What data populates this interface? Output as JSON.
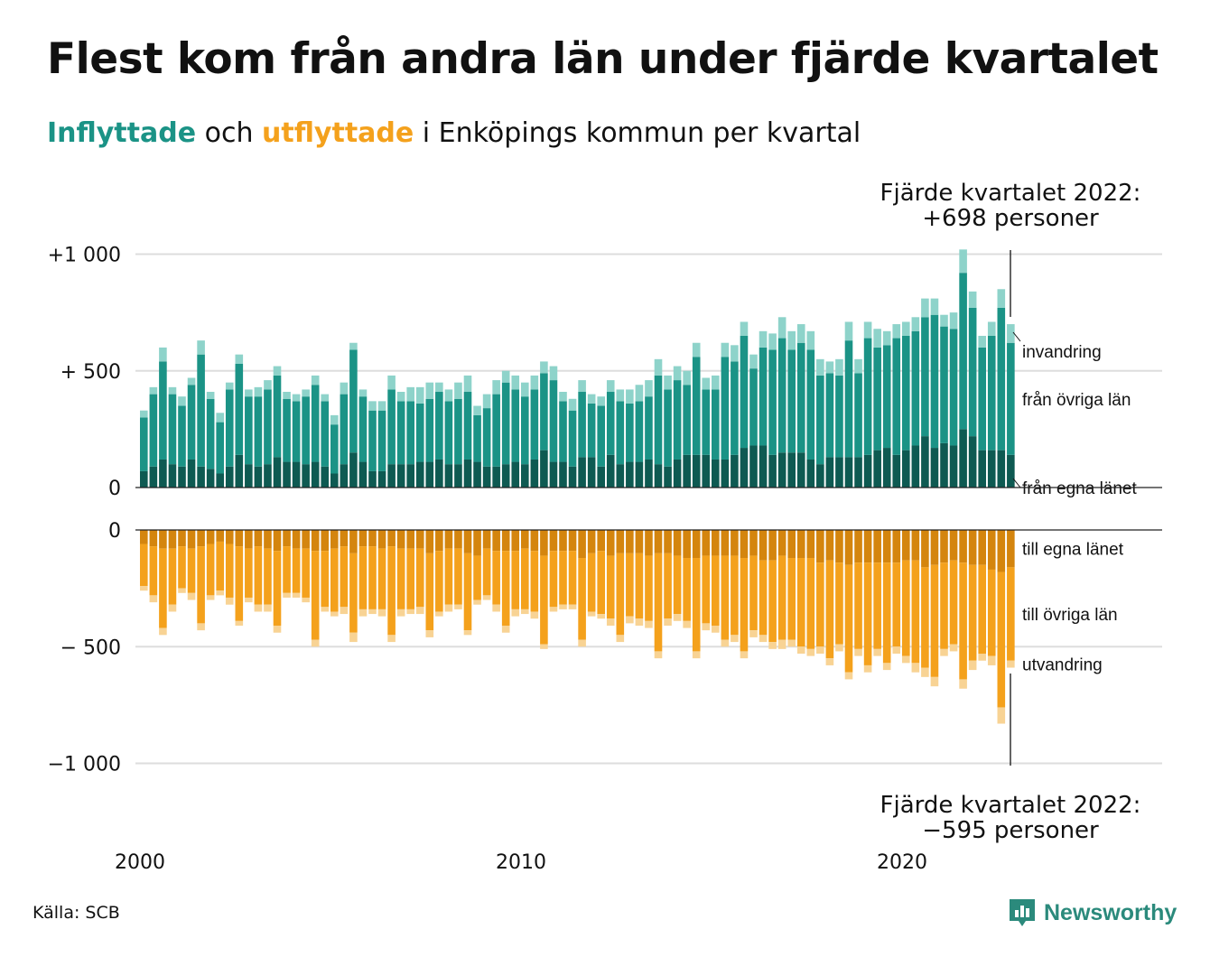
{
  "title": "Flest kom från andra län under fjärde kvartalet",
  "subtitle": {
    "inflyttade": "Inflyttade",
    "och": " och ",
    "utflyttade": "utflyttade",
    "rest": " i Enköpings kommun per kvartal"
  },
  "source": "Källa: SCB",
  "logo": {
    "text": "Newsworthy",
    "icon": "newsworthy-chart-icon"
  },
  "colors": {
    "in_own": "#0e5a52",
    "in_other": "#1b9386",
    "in_immig": "#8ed3ca",
    "out_own": "#d4850e",
    "out_other": "#f4a11c",
    "out_emig": "#f8d394",
    "grid": "#dddddd",
    "text": "#111111"
  },
  "chart_data": {
    "type": "bar",
    "stacked": true,
    "x_start": "2000 Q1",
    "x_ticks": [
      "2000",
      "2010",
      "2020"
    ],
    "top_panel": {
      "y_ticks": [
        "+1 000",
        "+ 500",
        "0"
      ],
      "y_tick_values": [
        1000,
        500,
        0
      ],
      "ylim": [
        0,
        1000
      ],
      "series": [
        {
          "key": "own",
          "label": "från egna länet",
          "values": [
            70,
            90,
            120,
            100,
            90,
            120,
            90,
            80,
            60,
            90,
            140,
            100,
            90,
            100,
            130,
            110,
            110,
            100,
            110,
            90,
            60,
            100,
            150,
            110,
            70,
            70,
            100,
            100,
            100,
            110,
            110,
            120,
            100,
            100,
            120,
            110,
            90,
            90,
            100,
            110,
            100,
            120,
            160,
            110,
            110,
            90,
            130,
            130,
            90,
            140,
            100,
            110,
            110,
            120,
            100,
            90,
            120,
            140,
            140,
            140,
            120,
            120,
            140,
            170,
            180,
            180,
            140,
            150,
            150,
            150,
            120,
            100,
            130,
            130,
            130,
            130,
            140,
            160,
            170,
            140,
            160,
            180,
            220,
            170,
            190,
            180,
            250,
            220,
            160,
            160,
            160,
            140
          ]
        },
        {
          "key": "other",
          "label": "från övriga län",
          "values": [
            230,
            310,
            420,
            300,
            260,
            320,
            480,
            300,
            220,
            330,
            390,
            290,
            300,
            320,
            350,
            270,
            260,
            290,
            330,
            280,
            210,
            300,
            440,
            280,
            260,
            260,
            320,
            270,
            270,
            250,
            270,
            290,
            270,
            280,
            290,
            200,
            250,
            310,
            350,
            310,
            290,
            300,
            330,
            350,
            260,
            240,
            280,
            230,
            260,
            270,
            270,
            250,
            260,
            270,
            380,
            330,
            340,
            300,
            420,
            280,
            300,
            440,
            400,
            480,
            330,
            420,
            450,
            490,
            440,
            470,
            470,
            380,
            360,
            350,
            500,
            360,
            500,
            440,
            440,
            500,
            490,
            490,
            510,
            570,
            500,
            500,
            670,
            550,
            440,
            490,
            610,
            480
          ]
        },
        {
          "key": "immig",
          "label": "invandring",
          "values": [
            30,
            30,
            60,
            30,
            40,
            30,
            60,
            30,
            40,
            30,
            40,
            30,
            40,
            40,
            40,
            30,
            30,
            30,
            40,
            30,
            40,
            50,
            30,
            30,
            40,
            40,
            60,
            40,
            60,
            70,
            70,
            40,
            50,
            70,
            70,
            40,
            60,
            60,
            50,
            60,
            60,
            60,
            50,
            60,
            40,
            50,
            50,
            40,
            40,
            50,
            50,
            60,
            70,
            70,
            70,
            60,
            60,
            60,
            60,
            50,
            60,
            60,
            70,
            60,
            60,
            70,
            70,
            90,
            80,
            80,
            80,
            70,
            50,
            70,
            80,
            60,
            70,
            80,
            60,
            60,
            60,
            60,
            80,
            70,
            50,
            70,
            100,
            70,
            50,
            60,
            80,
            80
          ]
        }
      ],
      "annotation": {
        "line1": "Fjärde kvartalet 2022:",
        "line2": "+698 personer"
      }
    },
    "bottom_panel": {
      "y_ticks": [
        "0",
        "− 500",
        "−1 000"
      ],
      "y_tick_values": [
        0,
        -500,
        -1000
      ],
      "ylim": [
        -1000,
        0
      ],
      "series": [
        {
          "key": "own",
          "label": "till egna länet",
          "values": [
            60,
            70,
            80,
            80,
            70,
            80,
            70,
            60,
            50,
            60,
            70,
            80,
            70,
            80,
            90,
            70,
            80,
            80,
            90,
            90,
            80,
            70,
            100,
            70,
            70,
            80,
            70,
            80,
            80,
            80,
            100,
            90,
            80,
            80,
            100,
            110,
            80,
            90,
            90,
            90,
            80,
            90,
            110,
            90,
            90,
            90,
            120,
            100,
            90,
            110,
            100,
            100,
            100,
            110,
            100,
            100,
            110,
            120,
            120,
            110,
            110,
            110,
            110,
            120,
            110,
            130,
            130,
            110,
            120,
            120,
            120,
            140,
            130,
            140,
            150,
            140,
            140,
            140,
            140,
            140,
            130,
            130,
            160,
            150,
            140,
            130,
            140,
            150,
            150,
            170,
            180,
            160
          ]
        },
        {
          "key": "other",
          "label": "till övriga län",
          "values": [
            180,
            210,
            340,
            240,
            180,
            190,
            330,
            220,
            210,
            230,
            320,
            210,
            250,
            240,
            320,
            200,
            190,
            210,
            380,
            240,
            270,
            260,
            340,
            270,
            270,
            260,
            380,
            260,
            260,
            250,
            330,
            260,
            240,
            240,
            330,
            190,
            200,
            230,
            320,
            250,
            260,
            260,
            380,
            240,
            230,
            230,
            350,
            250,
            270,
            270,
            350,
            270,
            280,
            280,
            420,
            280,
            250,
            270,
            400,
            290,
            300,
            360,
            340,
            400,
            320,
            320,
            350,
            360,
            350,
            380,
            390,
            360,
            420,
            350,
            460,
            370,
            440,
            370,
            430,
            360,
            410,
            440,
            430,
            480,
            370,
            360,
            500,
            410,
            380,
            370,
            580,
            400
          ]
        },
        {
          "key": "emig",
          "label": "utvandring",
          "values": [
            20,
            30,
            30,
            30,
            20,
            30,
            30,
            20,
            20,
            30,
            20,
            20,
            30,
            30,
            30,
            20,
            20,
            20,
            30,
            20,
            20,
            30,
            40,
            30,
            20,
            30,
            30,
            30,
            20,
            30,
            30,
            20,
            30,
            20,
            20,
            20,
            20,
            30,
            30,
            30,
            20,
            30,
            20,
            20,
            20,
            20,
            30,
            20,
            20,
            30,
            30,
            30,
            30,
            30,
            30,
            30,
            30,
            30,
            30,
            30,
            30,
            30,
            30,
            30,
            30,
            30,
            30,
            40,
            30,
            30,
            30,
            30,
            30,
            30,
            30,
            30,
            30,
            30,
            30,
            30,
            30,
            40,
            40,
            40,
            30,
            30,
            40,
            40,
            30,
            40,
            70,
            30
          ]
        }
      ],
      "annotation": {
        "line1": "Fjärde kvartalet 2022:",
        "line2": "−595 personer"
      }
    }
  }
}
